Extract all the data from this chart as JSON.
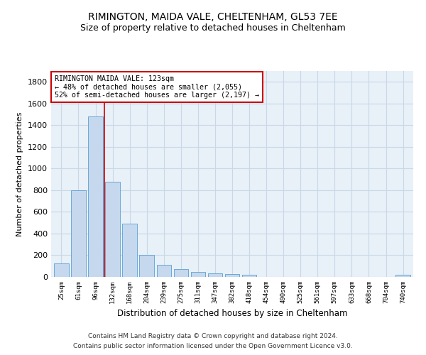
{
  "title": "RIMINGTON, MAIDA VALE, CHELTENHAM, GL53 7EE",
  "subtitle": "Size of property relative to detached houses in Cheltenham",
  "xlabel": "Distribution of detached houses by size in Cheltenham",
  "ylabel": "Number of detached properties",
  "categories": [
    "25sqm",
    "61sqm",
    "96sqm",
    "132sqm",
    "168sqm",
    "204sqm",
    "239sqm",
    "275sqm",
    "311sqm",
    "347sqm",
    "382sqm",
    "418sqm",
    "454sqm",
    "490sqm",
    "525sqm",
    "561sqm",
    "597sqm",
    "633sqm",
    "668sqm",
    "704sqm",
    "740sqm"
  ],
  "values": [
    125,
    800,
    1480,
    880,
    490,
    205,
    110,
    70,
    48,
    35,
    25,
    20,
    0,
    0,
    0,
    0,
    0,
    0,
    0,
    0,
    18
  ],
  "bar_color": "#c5d8ed",
  "bar_edge_color": "#5a9fd4",
  "vline_color": "#cc0000",
  "annotation_text": "RIMINGTON MAIDA VALE: 123sqm\n← 48% of detached houses are smaller (2,055)\n52% of semi-detached houses are larger (2,197) →",
  "annotation_box_facecolor": "#ffffff",
  "annotation_box_edgecolor": "#cc0000",
  "ylim": [
    0,
    1900
  ],
  "yticks": [
    0,
    200,
    400,
    600,
    800,
    1000,
    1200,
    1400,
    1600,
    1800
  ],
  "grid_color": "#c8d8e8",
  "background_color": "#e8f0f8",
  "footer_line1": "Contains HM Land Registry data © Crown copyright and database right 2024.",
  "footer_line2": "Contains public sector information licensed under the Open Government Licence v3.0."
}
